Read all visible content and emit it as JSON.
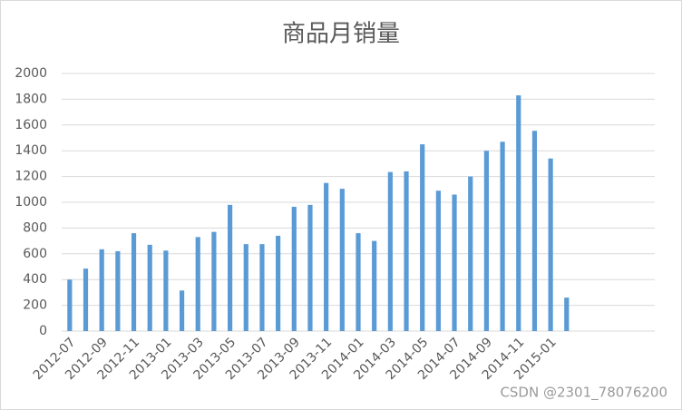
{
  "chart_data": {
    "type": "bar",
    "title": "商品月销量",
    "categories": [
      "2012-07",
      null,
      "2012-09",
      null,
      "2012-11",
      null,
      "2013-01",
      null,
      "2013-03",
      null,
      "2013-05",
      null,
      "2013-07",
      null,
      "2013-09",
      null,
      "2013-11",
      null,
      "2014-01",
      null,
      "2014-03",
      null,
      "2014-05",
      null,
      "2014-07",
      null,
      "2014-09",
      null,
      "2014-11",
      null,
      "2015-01",
      null,
      null,
      null,
      null,
      null,
      null
    ],
    "values": [
      400,
      485,
      635,
      620,
      760,
      670,
      625,
      315,
      730,
      770,
      980,
      675,
      675,
      740,
      965,
      980,
      1150,
      1105,
      760,
      700,
      1235,
      1240,
      1450,
      1090,
      1060,
      1200,
      1400,
      1470,
      1830,
      1555,
      1340,
      260,
      null,
      null,
      null,
      null,
      null
    ],
    "color": "#5b9bd5",
    "ylim": [
      0,
      2000
    ],
    "yticks": [
      0,
      200,
      400,
      600,
      800,
      1000,
      1200,
      1400,
      1600,
      1800,
      2000
    ],
    "grid": true,
    "watermark": "CSDN @2301_78076200"
  }
}
